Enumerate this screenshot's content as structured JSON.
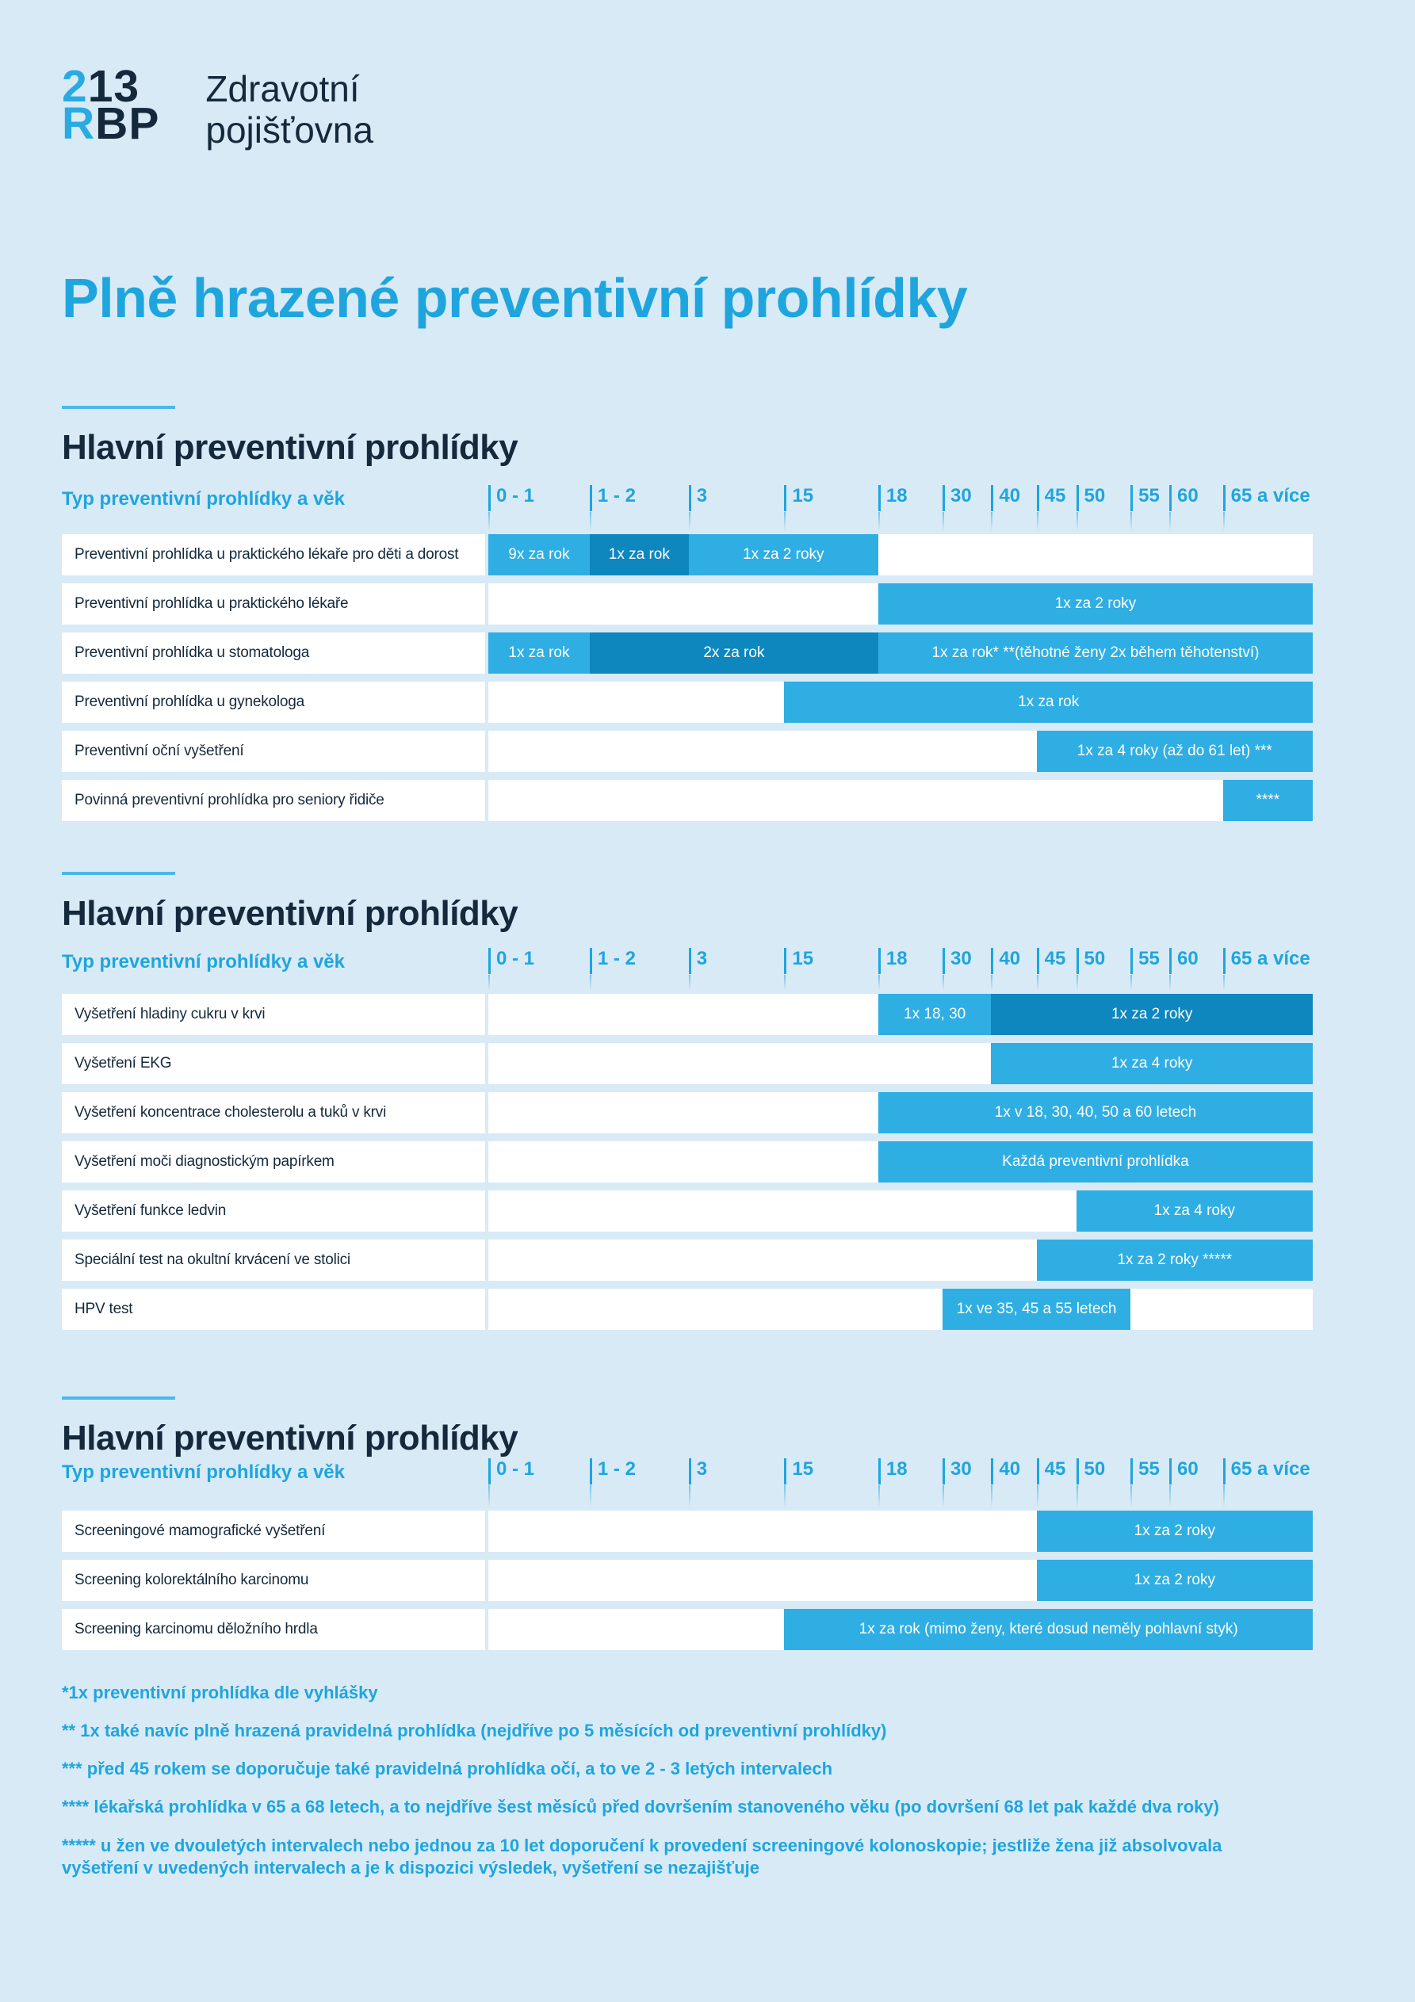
{
  "logo": {
    "code_line1_accent": "2",
    "code_line1_rest": "13",
    "code_line2_accent": "R",
    "code_line2_rest": "BP",
    "brand_line1": "Zdravotní",
    "brand_line2": "pojišťovna"
  },
  "main_title": "Plně hrazené preventivní prohlídky",
  "colors": {
    "background": "#D8EAF6",
    "bar_light": "#2FAEE3",
    "bar_dark": "#0E87BE",
    "accent_text_blue": "#1FA5DE",
    "heading_navy": "#14293C",
    "accent_line": "#4AB8E8",
    "row_background": "#FFFFFF",
    "logo_accent": "#29ABE2"
  },
  "layout": {
    "tick_positions_pct": [
      0,
      12.3,
      24.3,
      35.9,
      47.3,
      55.1,
      61.0,
      66.5,
      71.3,
      77.9,
      82.6,
      89.1,
      100
    ]
  },
  "chart_data": [
    {
      "type": "bar",
      "title": "Hlavní preventivní prohlídky",
      "axis_caption": "Typ preventivní prohlídky a věk",
      "age_ticks": [
        "0 - 1",
        "1 - 2",
        "3",
        "15",
        "18",
        "30",
        "40",
        "45",
        "50",
        "55",
        "60",
        "65 a více"
      ],
      "rows": [
        {
          "label": "Preventivní prohlídka u praktického lékaře pro děti a dorost",
          "bars": [
            {
              "text": "9x za rok",
              "from": 0,
              "to": 1,
              "shade": "light"
            },
            {
              "text": "1x za rok",
              "from": 1,
              "to": 2,
              "shade": "dark"
            },
            {
              "text": "1x za 2 roky",
              "from": 2,
              "to": 4,
              "shade": "light"
            }
          ]
        },
        {
          "label": "Preventivní prohlídka u praktického lékaře",
          "bars": [
            {
              "text": "1x za 2 roky",
              "from": 4,
              "to": 12,
              "shade": "light"
            }
          ]
        },
        {
          "label": "Preventivní prohlídka u stomatologa",
          "bars": [
            {
              "text": "1x za rok",
              "from": 0,
              "to": 1,
              "shade": "light"
            },
            {
              "text": "2x za rok",
              "from": 1,
              "to": 4,
              "shade": "dark"
            },
            {
              "text": "1x za rok* **(těhotné ženy 2x během těhotenství)",
              "from": 4,
              "to": 12,
              "shade": "light"
            }
          ]
        },
        {
          "label": "Preventivní prohlídka u gynekologa",
          "bars": [
            {
              "text": "1x za rok",
              "from": 3,
              "to": 12,
              "shade": "light"
            }
          ]
        },
        {
          "label": "Preventivní oční vyšetření",
          "bars": [
            {
              "text": "1x za 4 roky (až do 61 let) ***",
              "from": 7,
              "to": 12,
              "shade": "light"
            }
          ]
        },
        {
          "label": "Povinná preventivní prohlídka pro seniory řidiče",
          "bars": [
            {
              "text": "****",
              "from": 11,
              "to": 12,
              "shade": "light"
            }
          ]
        }
      ]
    },
    {
      "type": "bar",
      "title": "Hlavní preventivní prohlídky",
      "axis_caption": "Typ preventivní prohlídky a věk",
      "age_ticks": [
        "0 - 1",
        "1 - 2",
        "3",
        "15",
        "18",
        "30",
        "40",
        "45",
        "50",
        "55",
        "60",
        "65 a více"
      ],
      "rows": [
        {
          "label": "Vyšetření hladiny cukru v krvi",
          "bars": [
            {
              "text": "1x 18, 30",
              "from": 4,
              "to": 6,
              "shade": "light"
            },
            {
              "text": "1x za 2 roky",
              "from": 6,
              "to": 12,
              "shade": "dark"
            }
          ]
        },
        {
          "label": "Vyšetření EKG",
          "bars": [
            {
              "text": "1x za 4 roky",
              "from": 6,
              "to": 12,
              "shade": "light"
            }
          ]
        },
        {
          "label": "Vyšetření koncentrace cholesterolu a tuků v krvi",
          "bars": [
            {
              "text": "1x v 18, 30, 40, 50 a 60 letech",
              "from": 4,
              "to": 12,
              "shade": "light"
            }
          ]
        },
        {
          "label": "Vyšetření moči diagnostickým papírkem",
          "bars": [
            {
              "text": "Každá preventivní prohlídka",
              "from": 4,
              "to": 12,
              "shade": "light"
            }
          ]
        },
        {
          "label": "Vyšetření funkce ledvin",
          "bars": [
            {
              "text": "1x za 4 roky",
              "from": 8,
              "to": 12,
              "shade": "light"
            }
          ]
        },
        {
          "label": "Speciální test na okultní krvácení ve stolici",
          "bars": [
            {
              "text": "1x za 2 roky *****",
              "from": 7,
              "to": 12,
              "shade": "light"
            }
          ]
        },
        {
          "label": "HPV test",
          "bars": [
            {
              "text": "1x ve 35, 45 a 55 letech",
              "from": 5,
              "to": 9,
              "shade": "light"
            }
          ]
        }
      ]
    },
    {
      "type": "bar",
      "title": "Hlavní preventivní prohlídky",
      "axis_caption": "Typ preventivní prohlídky a věk",
      "age_ticks": [
        "0 - 1",
        "1 - 2",
        "3",
        "15",
        "18",
        "30",
        "40",
        "45",
        "50",
        "55",
        "60",
        "65 a více"
      ],
      "rows": [
        {
          "label": "Screeningové mamografické vyšetření",
          "bars": [
            {
              "text": "1x za 2 roky",
              "from": 7,
              "to": 12,
              "shade": "light"
            }
          ]
        },
        {
          "label": "Screening kolorektálního karcinomu",
          "bars": [
            {
              "text": "1x za 2 roky",
              "from": 7,
              "to": 12,
              "shade": "light"
            }
          ]
        },
        {
          "label": "Screening karcinomu děložního hrdla",
          "bars": [
            {
              "text": "1x za rok (mimo ženy, které dosud neměly pohlavní styk)",
              "from": 3,
              "to": 12,
              "shade": "light"
            }
          ]
        }
      ]
    }
  ],
  "footnotes": [
    "*1x preventivní prohlídka dle vyhlášky",
    "** 1x také navíc plně hrazená pravidelná prohlídka (nejdříve po 5 měsících od preventivní prohlídky)",
    "*** před 45 rokem se doporučuje také pravidelná prohlídka očí, a to ve 2 - 3 letých intervalech",
    "**** lékařská prohlídka v 65 a 68 letech, a to nejdříve šest měsíců před dovršením stanoveného věku (po dovršení 68 let pak každé dva roky)",
    "***** u žen ve dvouletých intervalech nebo jednou za 10 let doporučení k provedení screeningové kolonoskopie; jestliže žena již absolvovala vyšetření v uvedených intervalech a je k dispozici výsledek, vyšetření se nezajišťuje"
  ]
}
